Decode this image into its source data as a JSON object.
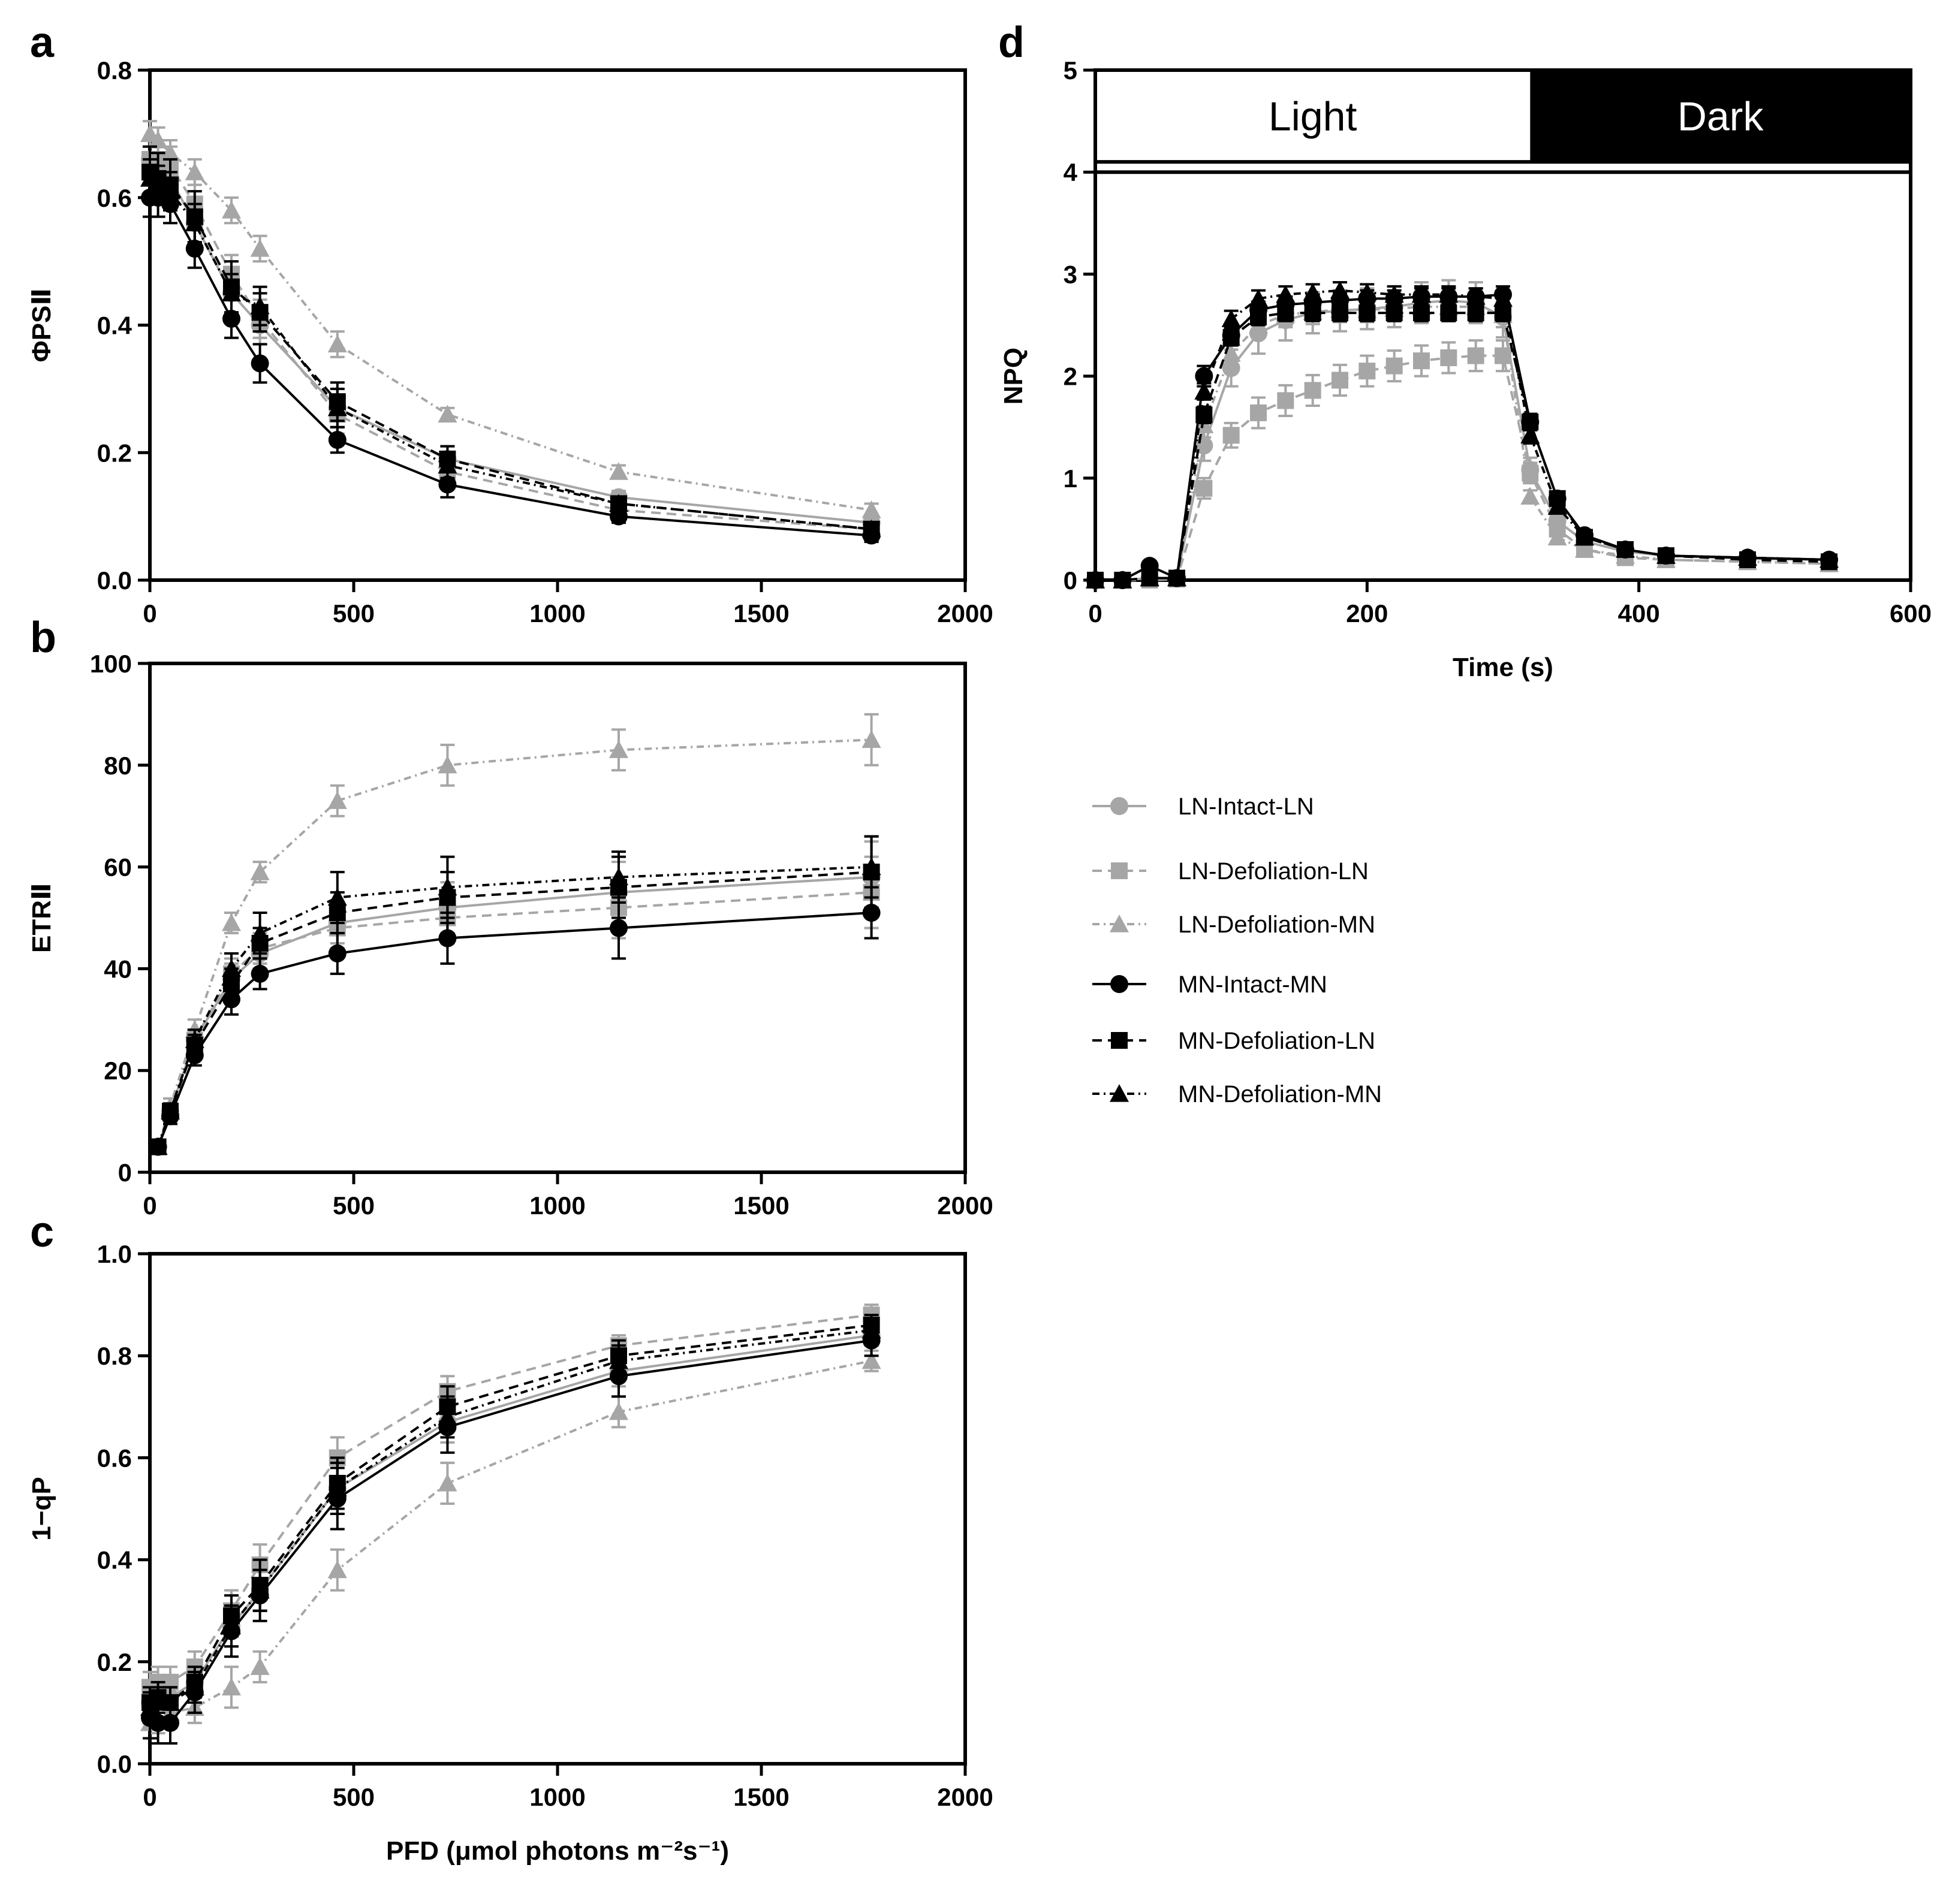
{
  "series_styles": [
    {
      "name": "LN-Intact-LN",
      "color": "#A6A6A6",
      "marker": "circle",
      "dash": ""
    },
    {
      "name": "LN-Defoliation-LN",
      "color": "#A6A6A6",
      "marker": "square",
      "dash": "16,10"
    },
    {
      "name": "LN-Defoliation-MN",
      "color": "#A6A6A6",
      "marker": "triangle",
      "dash": "12,7,3,7"
    },
    {
      "name": "MN-Intact-MN",
      "color": "#000000",
      "marker": "circle",
      "dash": ""
    },
    {
      "name": "MN-Defoliation-LN",
      "color": "#000000",
      "marker": "square",
      "dash": "16,10"
    },
    {
      "name": "MN-Defoliation-MN",
      "color": "#000000",
      "marker": "triangle",
      "dash": "12,7,3,7"
    }
  ],
  "legend": {
    "entries": [
      "LN-Intact-LN",
      "LN-Defoliation-LN",
      "LN-Defoliation-MN",
      "MN-Intact-MN",
      "MN-Defoliation-LN",
      "MN-Defoliation-MN"
    ]
  },
  "chart_data": [
    {
      "panel": "a",
      "type": "line",
      "xlabel": "",
      "ylabel": "ΦPSⅡ",
      "xlim": [
        0,
        2000
      ],
      "ylim": [
        0,
        0.8
      ],
      "xticks": [
        "0",
        "500",
        "1000",
        "1500",
        "2000"
      ],
      "yticks": [
        "0.0",
        "0.2",
        "0.4",
        "0.6",
        "0.8"
      ],
      "x": [
        0,
        20,
        50,
        110,
        200,
        270,
        460,
        730,
        1150,
        1770
      ],
      "series": [
        {
          "name": "LN-Intact-LN",
          "values": [
            0.66,
            0.65,
            0.63,
            0.56,
            0.45,
            0.4,
            0.27,
            0.19,
            0.13,
            0.09
          ],
          "errors": [
            0.03,
            0.03,
            0.03,
            0.03,
            0.03,
            0.03,
            0.03,
            0.02,
            0.01,
            0.01
          ]
        },
        {
          "name": "LN-Defoliation-LN",
          "values": [
            0.66,
            0.66,
            0.65,
            0.59,
            0.48,
            0.41,
            0.26,
            0.17,
            0.11,
            0.08
          ],
          "errors": [
            0.03,
            0.03,
            0.03,
            0.03,
            0.03,
            0.03,
            0.03,
            0.02,
            0.01,
            0.01
          ]
        },
        {
          "name": "LN-Defoliation-MN",
          "values": [
            0.7,
            0.69,
            0.67,
            0.64,
            0.58,
            0.52,
            0.37,
            0.26,
            0.17,
            0.11
          ],
          "errors": [
            0.02,
            0.02,
            0.02,
            0.02,
            0.02,
            0.02,
            0.02,
            0.01,
            0.01,
            0.01
          ]
        },
        {
          "name": "MN-Intact-MN",
          "values": [
            0.6,
            0.6,
            0.59,
            0.52,
            0.41,
            0.34,
            0.22,
            0.15,
            0.1,
            0.07
          ],
          "errors": [
            0.03,
            0.03,
            0.03,
            0.03,
            0.03,
            0.03,
            0.02,
            0.02,
            0.01,
            0.01
          ]
        },
        {
          "name": "MN-Defoliation-LN",
          "values": [
            0.64,
            0.63,
            0.62,
            0.57,
            0.46,
            0.42,
            0.28,
            0.19,
            0.12,
            0.08
          ],
          "errors": [
            0.04,
            0.04,
            0.04,
            0.04,
            0.04,
            0.03,
            0.03,
            0.02,
            0.01,
            0.01
          ]
        },
        {
          "name": "MN-Defoliation-MN",
          "values": [
            0.63,
            0.62,
            0.61,
            0.56,
            0.45,
            0.43,
            0.27,
            0.18,
            0.12,
            0.08
          ],
          "errors": [
            0.03,
            0.03,
            0.03,
            0.03,
            0.03,
            0.03,
            0.03,
            0.02,
            0.01,
            0.01
          ]
        }
      ]
    },
    {
      "panel": "b",
      "type": "line",
      "xlabel": "",
      "ylabel": "ETRⅡ",
      "xlim": [
        0,
        2000
      ],
      "ylim": [
        0,
        100
      ],
      "xticks": [
        "0",
        "500",
        "1000",
        "1500",
        "2000"
      ],
      "yticks": [
        "0",
        "20",
        "40",
        "60",
        "80",
        "100"
      ],
      "x": [
        20,
        50,
        110,
        200,
        270,
        460,
        730,
        1150,
        1770
      ],
      "series": [
        {
          "name": "LN-Intact-LN",
          "values": [
            5,
            12,
            26,
            38,
            43,
            49,
            52,
            55,
            58
          ],
          "errors": [
            1,
            1.5,
            2,
            3,
            3,
            4,
            5,
            6,
            7
          ]
        },
        {
          "name": "LN-Defoliation-LN",
          "values": [
            5,
            12,
            26,
            39,
            44,
            48,
            50,
            52,
            55
          ],
          "errors": [
            1,
            1.5,
            2,
            3,
            3,
            4,
            5,
            6,
            7
          ]
        },
        {
          "name": "LN-Defoliation-MN",
          "values": [
            5,
            13,
            28,
            49,
            59,
            73,
            80,
            83,
            85
          ],
          "errors": [
            1,
            1.5,
            2,
            2,
            2,
            3,
            4,
            4,
            5
          ]
        },
        {
          "name": "MN-Intact-MN",
          "values": [
            5,
            11,
            23,
            34,
            39,
            43,
            46,
            48,
            51
          ],
          "errors": [
            1,
            1.5,
            2,
            3,
            3,
            4,
            5,
            6,
            5
          ]
        },
        {
          "name": "MN-Defoliation-LN",
          "values": [
            5,
            12,
            25,
            37,
            45,
            51,
            54,
            56,
            59
          ],
          "errors": [
            1,
            1.5,
            2,
            3,
            3,
            4,
            5,
            6,
            7
          ]
        },
        {
          "name": "MN-Defoliation-MN",
          "values": [
            5,
            12,
            26,
            40,
            47,
            54,
            56,
            58,
            60
          ],
          "errors": [
            1,
            1.5,
            2,
            3,
            4,
            5,
            6,
            5,
            6
          ]
        }
      ]
    },
    {
      "panel": "c",
      "type": "line",
      "xlabel": "PFD (μmol photons m⁻²s⁻¹)",
      "ylabel": "1−qP",
      "xlim": [
        0,
        2000
      ],
      "ylim": [
        0,
        1.0
      ],
      "xticks": [
        "0",
        "500",
        "1000",
        "1500",
        "2000"
      ],
      "yticks": [
        "0.0",
        "0.2",
        "0.4",
        "0.6",
        "0.8",
        "1.0"
      ],
      "x": [
        0,
        20,
        50,
        110,
        200,
        270,
        460,
        730,
        1150,
        1770
      ],
      "series": [
        {
          "name": "LN-Intact-LN",
          "values": [
            0.12,
            0.13,
            0.13,
            0.16,
            0.27,
            0.34,
            0.54,
            0.67,
            0.77,
            0.84
          ],
          "errors": [
            0.03,
            0.03,
            0.03,
            0.03,
            0.04,
            0.04,
            0.05,
            0.04,
            0.03,
            0.02
          ]
        },
        {
          "name": "LN-Defoliation-LN",
          "values": [
            0.15,
            0.16,
            0.16,
            0.19,
            0.3,
            0.39,
            0.6,
            0.73,
            0.82,
            0.88
          ],
          "errors": [
            0.03,
            0.03,
            0.03,
            0.03,
            0.04,
            0.04,
            0.04,
            0.03,
            0.02,
            0.02
          ]
        },
        {
          "name": "LN-Defoliation-MN",
          "values": [
            0.08,
            0.09,
            0.1,
            0.11,
            0.15,
            0.19,
            0.38,
            0.55,
            0.69,
            0.79
          ],
          "errors": [
            0.03,
            0.03,
            0.03,
            0.03,
            0.04,
            0.03,
            0.04,
            0.04,
            0.03,
            0.02
          ]
        },
        {
          "name": "MN-Intact-MN",
          "values": [
            0.09,
            0.08,
            0.08,
            0.14,
            0.26,
            0.33,
            0.52,
            0.66,
            0.76,
            0.83
          ],
          "errors": [
            0.04,
            0.04,
            0.04,
            0.04,
            0.05,
            0.05,
            0.06,
            0.05,
            0.04,
            0.03
          ]
        },
        {
          "name": "MN-Defoliation-LN",
          "values": [
            0.12,
            0.13,
            0.12,
            0.16,
            0.29,
            0.35,
            0.55,
            0.7,
            0.8,
            0.86
          ],
          "errors": [
            0.03,
            0.03,
            0.03,
            0.03,
            0.04,
            0.05,
            0.05,
            0.04,
            0.03,
            0.02
          ]
        },
        {
          "name": "MN-Defoliation-MN",
          "values": [
            0.11,
            0.12,
            0.12,
            0.15,
            0.27,
            0.34,
            0.54,
            0.68,
            0.79,
            0.85
          ],
          "errors": [
            0.03,
            0.03,
            0.03,
            0.03,
            0.04,
            0.04,
            0.05,
            0.04,
            0.03,
            0.02
          ]
        }
      ]
    },
    {
      "panel": "d",
      "type": "line",
      "xlabel": "Time (s)",
      "ylabel": "NPQ",
      "xlim": [
        0,
        600
      ],
      "ylim": [
        0,
        5
      ],
      "plot_ymax": 4,
      "xticks": [
        "0",
        "200",
        "400",
        "600"
      ],
      "yticks": [
        "0",
        "1",
        "2",
        "3",
        "4",
        "5"
      ],
      "bands": [
        {
          "label": "Light",
          "from": 0,
          "to": 320,
          "fill": "#FFFFFF",
          "text_color": "#000000"
        },
        {
          "label": "Dark",
          "from": 320,
          "to": 600,
          "fill": "#000000",
          "text_color": "#FFFFFF"
        }
      ],
      "x": [
        0,
        20,
        40,
        60,
        80,
        100,
        120,
        140,
        160,
        180,
        200,
        220,
        240,
        260,
        280,
        300,
        320,
        340,
        360,
        390,
        420,
        480,
        540
      ],
      "series": [
        {
          "name": "LN-Intact-LN",
          "values": [
            0,
            0,
            0.02,
            0.02,
            1.32,
            2.08,
            2.42,
            2.55,
            2.62,
            2.64,
            2.66,
            2.68,
            2.72,
            2.74,
            2.72,
            2.58,
            1.08,
            0.58,
            0.38,
            0.28,
            0.24,
            0.21,
            0.2
          ],
          "errors": [
            0.02,
            0.02,
            0.02,
            0.02,
            0.15,
            0.18,
            0.2,
            0.2,
            0.2,
            0.2,
            0.2,
            0.2,
            0.2,
            0.2,
            0.2,
            0.2,
            0.12,
            0.05,
            0.04,
            0.03,
            0.03,
            0.03,
            0.03
          ]
        },
        {
          "name": "LN-Defoliation-LN",
          "values": [
            0,
            0,
            0,
            0.01,
            0.9,
            1.42,
            1.64,
            1.76,
            1.86,
            1.96,
            2.05,
            2.1,
            2.15,
            2.18,
            2.2,
            2.2,
            1.05,
            0.5,
            0.3,
            0.22,
            0.2,
            0.18,
            0.16
          ],
          "errors": [
            0.02,
            0.02,
            0.02,
            0.02,
            0.1,
            0.12,
            0.15,
            0.15,
            0.15,
            0.15,
            0.15,
            0.15,
            0.15,
            0.15,
            0.15,
            0.15,
            0.1,
            0.05,
            0.04,
            0.03,
            0.03,
            0.03,
            0.03
          ]
        },
        {
          "name": "LN-Defoliation-MN",
          "values": [
            0,
            0,
            0.02,
            0.02,
            1.52,
            2.22,
            2.5,
            2.6,
            2.63,
            2.65,
            2.65,
            2.66,
            2.68,
            2.68,
            2.68,
            2.6,
            0.82,
            0.42,
            0.3,
            0.24,
            0.2,
            0.18,
            0.16
          ],
          "errors": [
            0.02,
            0.02,
            0.02,
            0.02,
            0.12,
            0.12,
            0.12,
            0.12,
            0.12,
            0.12,
            0.12,
            0.12,
            0.12,
            0.12,
            0.12,
            0.12,
            0.06,
            0.04,
            0.03,
            0.03,
            0.03,
            0.03,
            0.03
          ]
        },
        {
          "name": "MN-Intact-MN",
          "values": [
            0,
            0,
            0.14,
            0.02,
            2.0,
            2.4,
            2.65,
            2.7,
            2.72,
            2.74,
            2.76,
            2.76,
            2.78,
            2.78,
            2.78,
            2.8,
            1.55,
            0.8,
            0.44,
            0.3,
            0.24,
            0.22,
            0.2
          ],
          "errors": [
            0.02,
            0.02,
            0.03,
            0.02,
            0.1,
            0.1,
            0.08,
            0.08,
            0.08,
            0.08,
            0.08,
            0.08,
            0.08,
            0.08,
            0.08,
            0.08,
            0.08,
            0.05,
            0.04,
            0.03,
            0.03,
            0.03,
            0.03
          ]
        },
        {
          "name": "MN-Defoliation-LN",
          "values": [
            0,
            0,
            0.02,
            0.02,
            1.62,
            2.38,
            2.58,
            2.62,
            2.62,
            2.62,
            2.62,
            2.62,
            2.62,
            2.62,
            2.62,
            2.62,
            1.55,
            0.8,
            0.42,
            0.3,
            0.24,
            0.2,
            0.18
          ],
          "errors": [
            0.02,
            0.02,
            0.02,
            0.02,
            0.08,
            0.08,
            0.08,
            0.08,
            0.08,
            0.08,
            0.08,
            0.08,
            0.08,
            0.08,
            0.08,
            0.08,
            0.08,
            0.05,
            0.04,
            0.03,
            0.03,
            0.03,
            0.03
          ]
        },
        {
          "name": "MN-Defoliation-MN",
          "values": [
            0,
            0,
            0.02,
            0.02,
            1.85,
            2.56,
            2.76,
            2.8,
            2.82,
            2.84,
            2.82,
            2.8,
            2.8,
            2.8,
            2.78,
            2.76,
            1.42,
            0.72,
            0.42,
            0.3,
            0.24,
            0.22,
            0.2
          ],
          "errors": [
            0.02,
            0.02,
            0.02,
            0.02,
            0.08,
            0.08,
            0.08,
            0.08,
            0.08,
            0.08,
            0.08,
            0.08,
            0.08,
            0.08,
            0.08,
            0.08,
            0.08,
            0.05,
            0.04,
            0.03,
            0.03,
            0.03,
            0.03
          ]
        }
      ]
    }
  ]
}
